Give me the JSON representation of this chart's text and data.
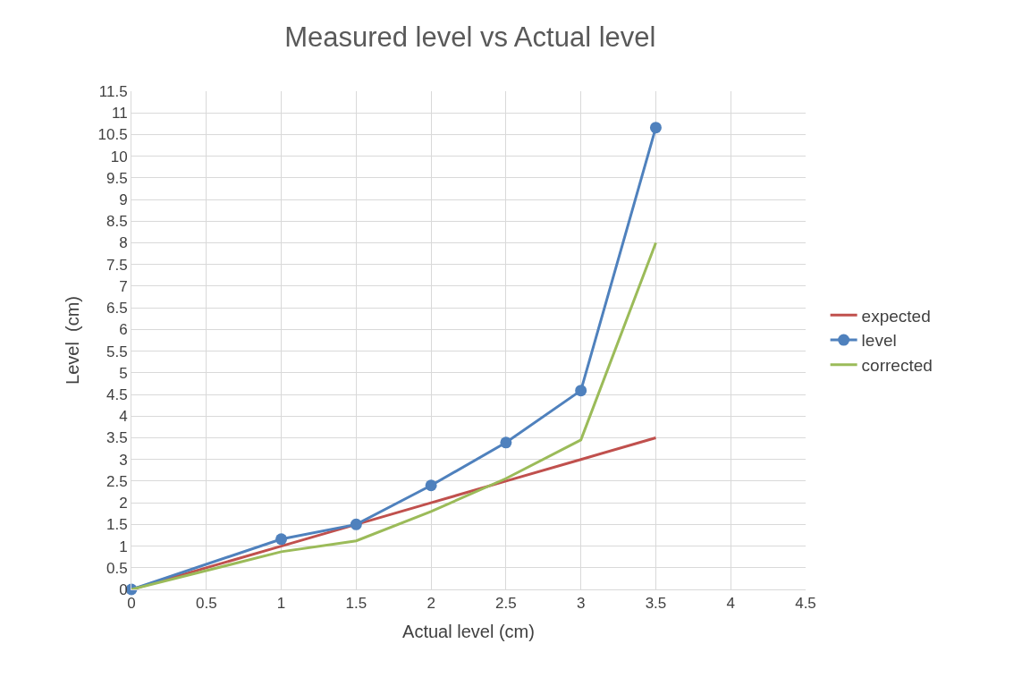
{
  "chart_data": {
    "type": "line",
    "title": "Measured level vs Actual level",
    "xlabel": "Actual level (cm)",
    "ylabel": "Level  (cm)",
    "x": [
      0,
      1,
      1.5,
      2,
      2.5,
      3,
      3.5
    ],
    "series": [
      {
        "name": "expected",
        "color": "#c0504d",
        "marker": "none",
        "values": [
          0,
          1,
          1.5,
          2,
          2.5,
          3,
          3.5
        ]
      },
      {
        "name": "level",
        "color": "#4f81bd",
        "marker": "circle",
        "values": [
          0,
          1.16,
          1.5,
          2.4,
          3.39,
          4.59,
          10.66
        ]
      },
      {
        "name": "corrected",
        "color": "#9bbb59",
        "marker": "none",
        "values": [
          0,
          0.87,
          1.12,
          1.8,
          2.56,
          3.45,
          8.0
        ]
      }
    ],
    "xlim": [
      0,
      4.5
    ],
    "xticks": [
      0,
      0.5,
      1,
      1.5,
      2,
      2.5,
      3,
      3.5,
      4,
      4.5
    ],
    "ylim": [
      0,
      11.5
    ],
    "yticks": [
      0,
      0.5,
      1,
      1.5,
      2,
      2.5,
      3,
      3.5,
      4,
      4.5,
      5,
      5.5,
      6,
      6.5,
      7,
      7.5,
      8,
      8.5,
      9,
      9.5,
      10,
      10.5,
      11,
      11.5
    ],
    "grid": true,
    "legend": "right",
    "line_style": "solid"
  }
}
